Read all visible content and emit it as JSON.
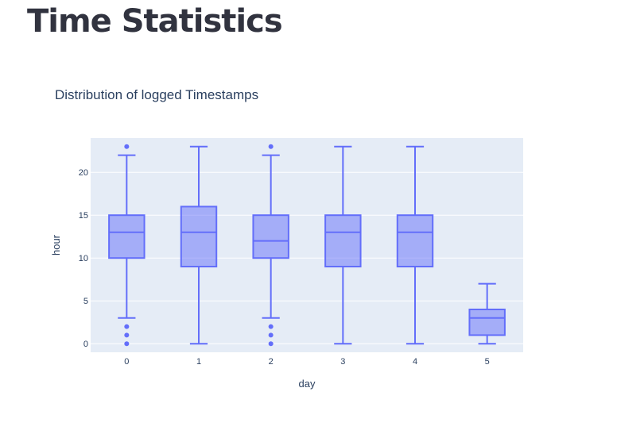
{
  "page": {
    "title": "Time Statistics"
  },
  "chart_data": {
    "type": "box",
    "title": "Distribution of logged Timestamps",
    "xlabel": "day",
    "ylabel": "hour",
    "categories": [
      "0",
      "1",
      "2",
      "3",
      "4",
      "5"
    ],
    "ylim": [
      -1,
      24
    ],
    "yticks": [
      0,
      5,
      10,
      15,
      20
    ],
    "grid": true,
    "color": "#636efa",
    "fill": "rgba(99,110,250,0.5)",
    "plot_bg": "#e5ecf6",
    "boxes": [
      {
        "x": "0",
        "lowerfence": 3,
        "q1": 10,
        "median": 13,
        "q3": 15,
        "upperfence": 22,
        "outliers": [
          0,
          1,
          2,
          23
        ]
      },
      {
        "x": "1",
        "lowerfence": 0,
        "q1": 9,
        "median": 13,
        "q3": 16,
        "upperfence": 23,
        "outliers": []
      },
      {
        "x": "2",
        "lowerfence": 3,
        "q1": 10,
        "median": 12,
        "q3": 15,
        "upperfence": 22,
        "outliers": [
          0,
          1,
          2,
          23
        ]
      },
      {
        "x": "3",
        "lowerfence": 0,
        "q1": 9,
        "median": 13,
        "q3": 15,
        "upperfence": 23,
        "outliers": []
      },
      {
        "x": "4",
        "lowerfence": 0,
        "q1": 9,
        "median": 13,
        "q3": 15,
        "upperfence": 23,
        "outliers": []
      },
      {
        "x": "5",
        "lowerfence": 0,
        "q1": 1,
        "median": 3,
        "q3": 4,
        "upperfence": 7,
        "outliers": []
      }
    ]
  }
}
